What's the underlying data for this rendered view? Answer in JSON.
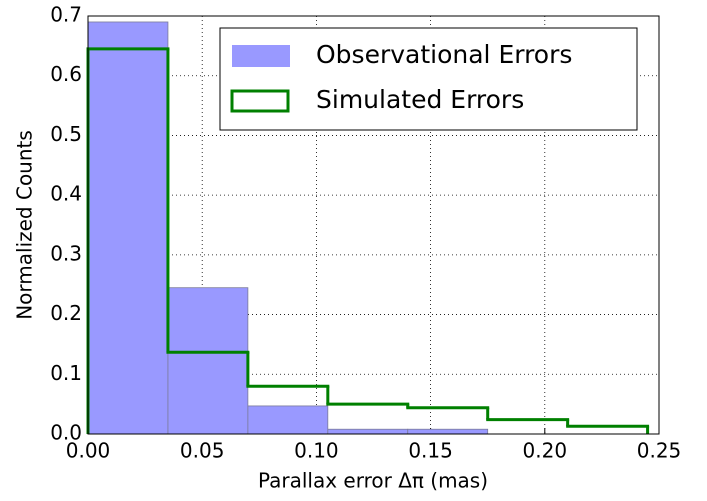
{
  "chart_data": {
    "type": "histogram",
    "xlabel": "Parallax error Δπ (mas)",
    "ylabel": "Normalized Counts",
    "bins": [
      0,
      0.035,
      0.07,
      0.105,
      0.14,
      0.175,
      0.21,
      0.245
    ],
    "series": [
      {
        "name": "Observational Errors",
        "color": "#9999ff",
        "histtype": "stepfilled",
        "values": [
          0.69,
          0.245,
          0.047,
          0.008,
          0.008,
          0,
          0
        ]
      },
      {
        "name": "Simulated Errors",
        "color": "#008000",
        "histtype": "step",
        "values": [
          0.645,
          0.137,
          0.08,
          0.05,
          0.044,
          0.024,
          0.013
        ]
      }
    ],
    "xlim": [
      0,
      0.25
    ],
    "xticks": [
      {
        "value": 0,
        "label": "0.00"
      },
      0.05,
      {
        "value": 0.1,
        "label": "0.10"
      },
      0.15,
      {
        "value": 0.2,
        "label": "0.20"
      },
      0.25
    ],
    "ylim": [
      0,
      0.7
    ],
    "yticks": [
      {
        "value": 0,
        "label": "0.0"
      },
      0.1,
      0.2,
      0.3,
      0.4,
      0.5,
      0.6,
      0.7
    ],
    "grid": true,
    "legend": "upper right"
  }
}
